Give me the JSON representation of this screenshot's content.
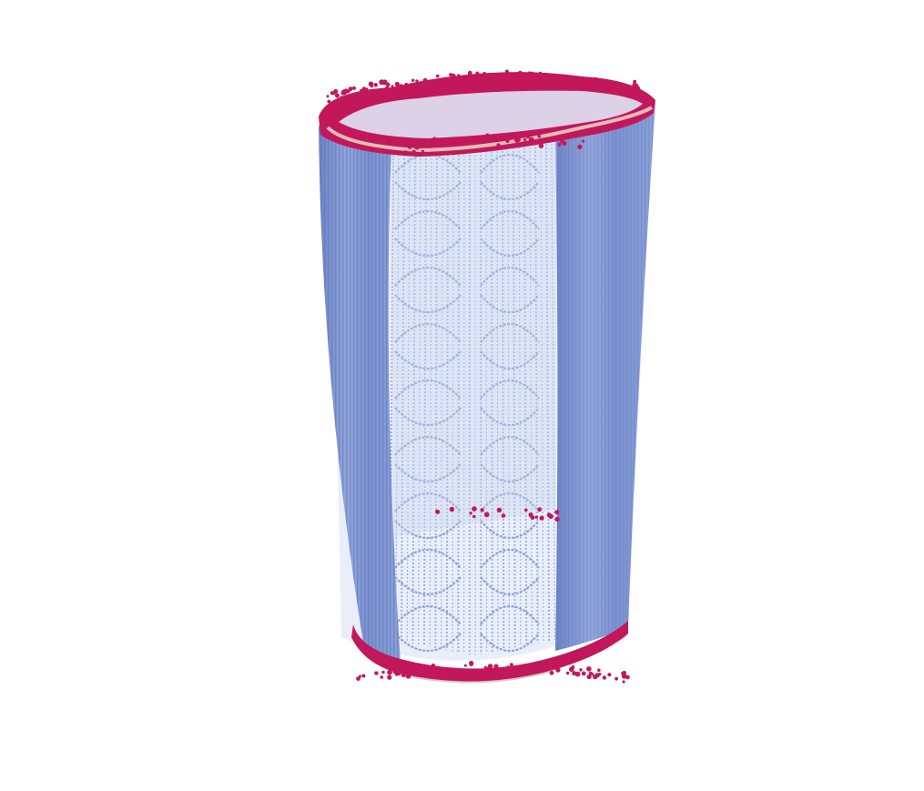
{
  "scene": {
    "subject": "cylindrical-point-cloud",
    "colors": {
      "background": "#ffffff",
      "body": "#7f95d1",
      "body_light": "#aebfe6",
      "body_dark": "#5f74b8",
      "rim": "#c2185b",
      "rim_edge": "#d9c2b0",
      "interior_strand": "#9fb2e3"
    }
  }
}
